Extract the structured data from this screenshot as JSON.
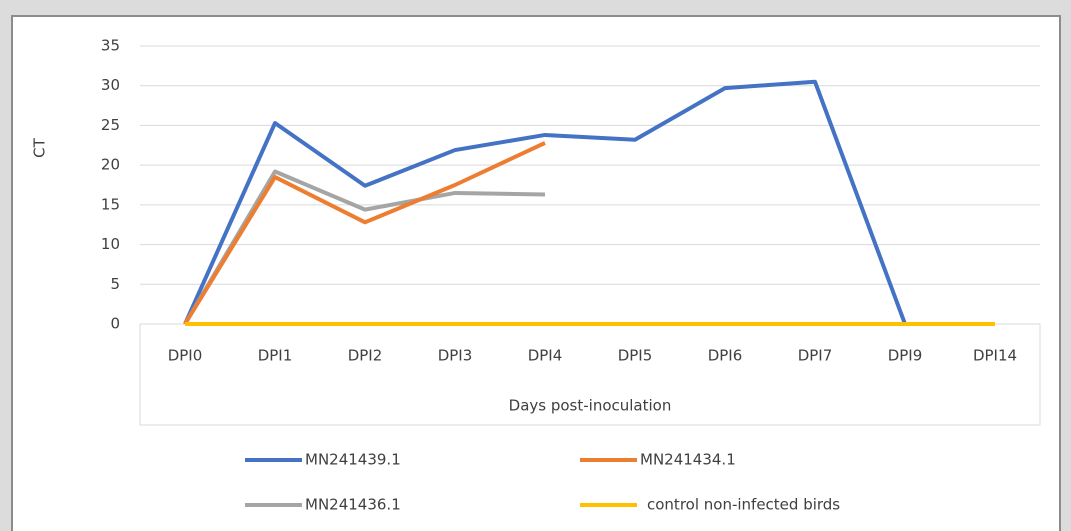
{
  "chart_data": {
    "type": "line",
    "y_label": "CT",
    "x_label": "Days post-inoculation",
    "categories": [
      "DPI0",
      "DPI1",
      "DPI2",
      "DPI3",
      "DPI4",
      "DPI5",
      "DPI6",
      "DPI7",
      "DPI9",
      "DPI14"
    ],
    "series": [
      {
        "name": "MN241439.1",
        "color": "#4472c4",
        "values": [
          0,
          25.3,
          17.4,
          21.9,
          23.8,
          23.2,
          29.7,
          30.5,
          0,
          null
        ]
      },
      {
        "name": "MN241434.1",
        "color": "#ed7d31",
        "values": [
          0,
          18.5,
          12.8,
          17.5,
          22.8,
          null,
          null,
          null,
          null,
          null
        ]
      },
      {
        "name": "MN241436.1",
        "color": "#a5a5a5",
        "values": [
          0,
          19.2,
          14.4,
          16.5,
          16.3,
          null,
          null,
          null,
          null,
          null
        ]
      },
      {
        "name": "control non-infected birds",
        "color": "#ffc000",
        "values": [
          0,
          0,
          0,
          0,
          0,
          0,
          0,
          0,
          0,
          0
        ]
      }
    ],
    "ylim": [
      0,
      35
    ],
    "yticks": [
      0,
      5,
      10,
      15,
      20,
      25,
      30,
      35
    ],
    "grid": true,
    "legend": "bottom"
  }
}
